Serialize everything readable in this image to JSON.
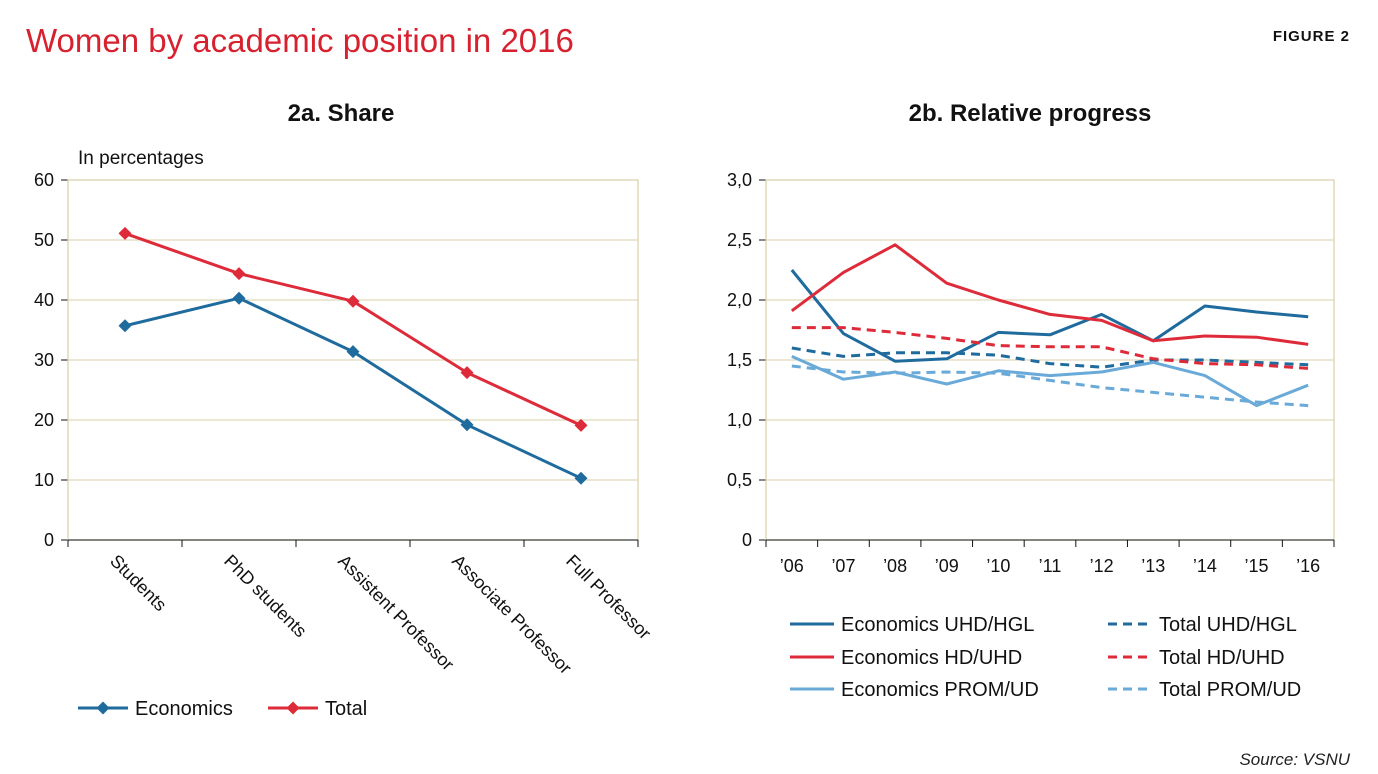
{
  "figure": {
    "title": "Women by academic position in 2016",
    "label": "FIGURE 2",
    "source": "Source: VSNU"
  },
  "colors": {
    "title": "#d7212f",
    "economics": "#1f6b9e",
    "total": "#de2b3a",
    "light_blue": "#6aaad8",
    "plot_border": "#d9cfa8",
    "grid": "#d9cfa8"
  },
  "chart_data": [
    {
      "id": "share",
      "type": "line",
      "title": "2a. Share",
      "ylabel": "In percentages",
      "xlabel": "",
      "ylim": [
        0,
        60
      ],
      "yticks": [
        0,
        10,
        20,
        30,
        40,
        50,
        60
      ],
      "ytick_labels": [
        "0",
        "10",
        "20",
        "30",
        "40",
        "50",
        "60"
      ],
      "grid": true,
      "legend": "bottom",
      "categories": [
        "Students",
        "PhD students",
        "Assistent Professor",
        "Associate Professor",
        "Full Professor"
      ],
      "series": [
        {
          "name": "Economics",
          "color": "#1f6b9e",
          "marker": "diamond",
          "values": [
            35.7,
            40.3,
            31.4,
            19.2,
            10.3
          ]
        },
        {
          "name": "Total",
          "color": "#de2b3a",
          "marker": "diamond",
          "values": [
            51.1,
            44.4,
            39.8,
            27.9,
            19.1
          ]
        }
      ]
    },
    {
      "id": "progress",
      "type": "line",
      "title": "2b. Relative progress",
      "xlabel": "",
      "ylabel": "",
      "ylim": [
        0,
        3
      ],
      "yticks": [
        0,
        0.5,
        1,
        1.5,
        2,
        2.5,
        3
      ],
      "ytick_labels": [
        "0",
        "0,5",
        "1,0",
        "1,5",
        "2,0",
        "2,5",
        "3,0"
      ],
      "grid": true,
      "legend": "bottom",
      "categories": [
        "’06",
        "’07",
        "’08",
        "’09",
        "’10",
        "’11",
        "’12",
        "’13",
        "’14",
        "’15",
        "’16"
      ],
      "series": [
        {
          "name": "Economics UHD/HGL",
          "color": "#1f6b9e",
          "dash": "solid",
          "values": [
            2.25,
            1.72,
            1.49,
            1.51,
            1.73,
            1.71,
            1.88,
            1.66,
            1.95,
            1.9,
            1.86
          ]
        },
        {
          "name": "Total UHD/HGL",
          "color": "#1f6b9e",
          "dash": "dashed",
          "values": [
            1.6,
            1.53,
            1.56,
            1.56,
            1.54,
            1.47,
            1.44,
            1.5,
            1.5,
            1.48,
            1.46
          ]
        },
        {
          "name": "Economics HD/UHD",
          "color": "#de2b3a",
          "dash": "solid",
          "values": [
            1.91,
            2.23,
            2.46,
            2.14,
            2.0,
            1.88,
            1.83,
            1.66,
            1.7,
            1.69,
            1.63
          ]
        },
        {
          "name": "Total HD/UHD",
          "color": "#de2b3a",
          "dash": "dashed",
          "values": [
            1.77,
            1.77,
            1.73,
            1.68,
            1.62,
            1.61,
            1.61,
            1.51,
            1.47,
            1.46,
            1.43
          ]
        },
        {
          "name": "Economics PROM/UD",
          "color": "#6aaad8",
          "dash": "solid",
          "values": [
            1.53,
            1.34,
            1.4,
            1.3,
            1.41,
            1.37,
            1.4,
            1.48,
            1.37,
            1.12,
            1.29
          ]
        },
        {
          "name": "Total PROM/UD",
          "color": "#6aaad8",
          "dash": "dashed",
          "values": [
            1.45,
            1.4,
            1.39,
            1.4,
            1.39,
            1.33,
            1.27,
            1.23,
            1.19,
            1.15,
            1.12
          ]
        }
      ]
    }
  ]
}
